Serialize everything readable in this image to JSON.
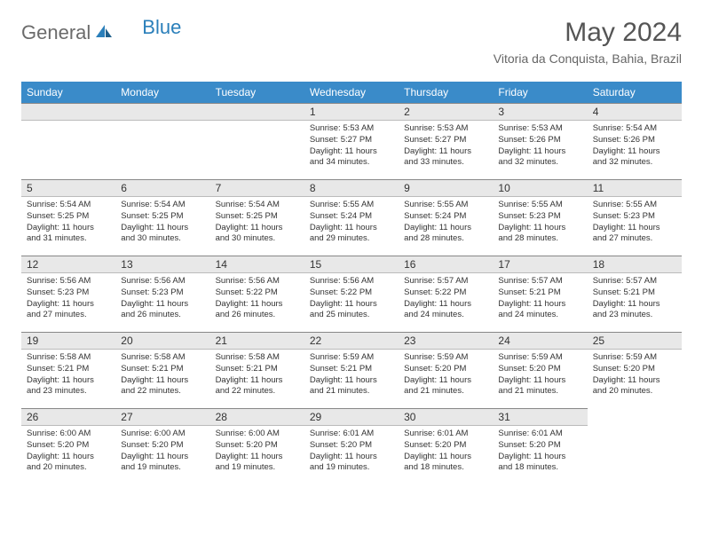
{
  "logo": {
    "part1": "General",
    "part2": "Blue"
  },
  "title": "May 2024",
  "location": "Vitoria da Conquista, Bahia, Brazil",
  "colors": {
    "header_bg": "#3a8bc9",
    "header_text": "#ffffff",
    "daynum_bg": "#e8e8e8",
    "text": "#333333",
    "logo_gray": "#6b6b6b",
    "logo_blue": "#2a7fba"
  },
  "weekdays": [
    "Sunday",
    "Monday",
    "Tuesday",
    "Wednesday",
    "Thursday",
    "Friday",
    "Saturday"
  ],
  "first_weekday_index": 3,
  "days": [
    {
      "n": 1,
      "sunrise": "5:53 AM",
      "sunset": "5:27 PM",
      "daylight": "11 hours and 34 minutes."
    },
    {
      "n": 2,
      "sunrise": "5:53 AM",
      "sunset": "5:27 PM",
      "daylight": "11 hours and 33 minutes."
    },
    {
      "n": 3,
      "sunrise": "5:53 AM",
      "sunset": "5:26 PM",
      "daylight": "11 hours and 32 minutes."
    },
    {
      "n": 4,
      "sunrise": "5:54 AM",
      "sunset": "5:26 PM",
      "daylight": "11 hours and 32 minutes."
    },
    {
      "n": 5,
      "sunrise": "5:54 AM",
      "sunset": "5:25 PM",
      "daylight": "11 hours and 31 minutes."
    },
    {
      "n": 6,
      "sunrise": "5:54 AM",
      "sunset": "5:25 PM",
      "daylight": "11 hours and 30 minutes."
    },
    {
      "n": 7,
      "sunrise": "5:54 AM",
      "sunset": "5:25 PM",
      "daylight": "11 hours and 30 minutes."
    },
    {
      "n": 8,
      "sunrise": "5:55 AM",
      "sunset": "5:24 PM",
      "daylight": "11 hours and 29 minutes."
    },
    {
      "n": 9,
      "sunrise": "5:55 AM",
      "sunset": "5:24 PM",
      "daylight": "11 hours and 28 minutes."
    },
    {
      "n": 10,
      "sunrise": "5:55 AM",
      "sunset": "5:23 PM",
      "daylight": "11 hours and 28 minutes."
    },
    {
      "n": 11,
      "sunrise": "5:55 AM",
      "sunset": "5:23 PM",
      "daylight": "11 hours and 27 minutes."
    },
    {
      "n": 12,
      "sunrise": "5:56 AM",
      "sunset": "5:23 PM",
      "daylight": "11 hours and 27 minutes."
    },
    {
      "n": 13,
      "sunrise": "5:56 AM",
      "sunset": "5:23 PM",
      "daylight": "11 hours and 26 minutes."
    },
    {
      "n": 14,
      "sunrise": "5:56 AM",
      "sunset": "5:22 PM",
      "daylight": "11 hours and 26 minutes."
    },
    {
      "n": 15,
      "sunrise": "5:56 AM",
      "sunset": "5:22 PM",
      "daylight": "11 hours and 25 minutes."
    },
    {
      "n": 16,
      "sunrise": "5:57 AM",
      "sunset": "5:22 PM",
      "daylight": "11 hours and 24 minutes."
    },
    {
      "n": 17,
      "sunrise": "5:57 AM",
      "sunset": "5:21 PM",
      "daylight": "11 hours and 24 minutes."
    },
    {
      "n": 18,
      "sunrise": "5:57 AM",
      "sunset": "5:21 PM",
      "daylight": "11 hours and 23 minutes."
    },
    {
      "n": 19,
      "sunrise": "5:58 AM",
      "sunset": "5:21 PM",
      "daylight": "11 hours and 23 minutes."
    },
    {
      "n": 20,
      "sunrise": "5:58 AM",
      "sunset": "5:21 PM",
      "daylight": "11 hours and 22 minutes."
    },
    {
      "n": 21,
      "sunrise": "5:58 AM",
      "sunset": "5:21 PM",
      "daylight": "11 hours and 22 minutes."
    },
    {
      "n": 22,
      "sunrise": "5:59 AM",
      "sunset": "5:21 PM",
      "daylight": "11 hours and 21 minutes."
    },
    {
      "n": 23,
      "sunrise": "5:59 AM",
      "sunset": "5:20 PM",
      "daylight": "11 hours and 21 minutes."
    },
    {
      "n": 24,
      "sunrise": "5:59 AM",
      "sunset": "5:20 PM",
      "daylight": "11 hours and 21 minutes."
    },
    {
      "n": 25,
      "sunrise": "5:59 AM",
      "sunset": "5:20 PM",
      "daylight": "11 hours and 20 minutes."
    },
    {
      "n": 26,
      "sunrise": "6:00 AM",
      "sunset": "5:20 PM",
      "daylight": "11 hours and 20 minutes."
    },
    {
      "n": 27,
      "sunrise": "6:00 AM",
      "sunset": "5:20 PM",
      "daylight": "11 hours and 19 minutes."
    },
    {
      "n": 28,
      "sunrise": "6:00 AM",
      "sunset": "5:20 PM",
      "daylight": "11 hours and 19 minutes."
    },
    {
      "n": 29,
      "sunrise": "6:01 AM",
      "sunset": "5:20 PM",
      "daylight": "11 hours and 19 minutes."
    },
    {
      "n": 30,
      "sunrise": "6:01 AM",
      "sunset": "5:20 PM",
      "daylight": "11 hours and 18 minutes."
    },
    {
      "n": 31,
      "sunrise": "6:01 AM",
      "sunset": "5:20 PM",
      "daylight": "11 hours and 18 minutes."
    }
  ],
  "labels": {
    "sunrise": "Sunrise:",
    "sunset": "Sunset:",
    "daylight": "Daylight:"
  }
}
